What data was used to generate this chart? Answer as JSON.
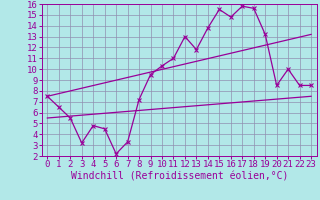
{
  "xlabel": "Windchill (Refroidissement éolien,°C)",
  "bg_color": "#b2e8e8",
  "grid_color": "#9090b0",
  "line_color": "#990099",
  "xlim": [
    -0.5,
    23.5
  ],
  "ylim": [
    2,
    16
  ],
  "xticks": [
    0,
    1,
    2,
    3,
    4,
    5,
    6,
    7,
    8,
    9,
    10,
    11,
    12,
    13,
    14,
    15,
    16,
    17,
    18,
    19,
    20,
    21,
    22,
    23
  ],
  "yticks": [
    2,
    3,
    4,
    5,
    6,
    7,
    8,
    9,
    10,
    11,
    12,
    13,
    14,
    15,
    16
  ],
  "jagged_x": [
    0,
    1,
    2,
    3,
    4,
    5,
    6,
    7,
    8,
    9,
    10,
    11,
    12,
    13,
    14,
    15,
    16,
    17,
    18,
    19,
    20,
    21,
    22,
    23
  ],
  "jagged_y": [
    7.5,
    6.5,
    5.5,
    3.2,
    4.8,
    4.5,
    2.2,
    3.3,
    7.2,
    9.5,
    10.3,
    11.0,
    13.0,
    11.8,
    13.8,
    15.5,
    14.8,
    15.8,
    15.6,
    13.2,
    8.5,
    10.0,
    8.5,
    8.5
  ],
  "upper_line_x": [
    0,
    23
  ],
  "upper_line_y": [
    7.5,
    13.2
  ],
  "lower_line_x": [
    0,
    23
  ],
  "lower_line_y": [
    5.5,
    7.5
  ],
  "font": "monospace",
  "tick_fontsize": 6.5,
  "label_fontsize": 7.0
}
